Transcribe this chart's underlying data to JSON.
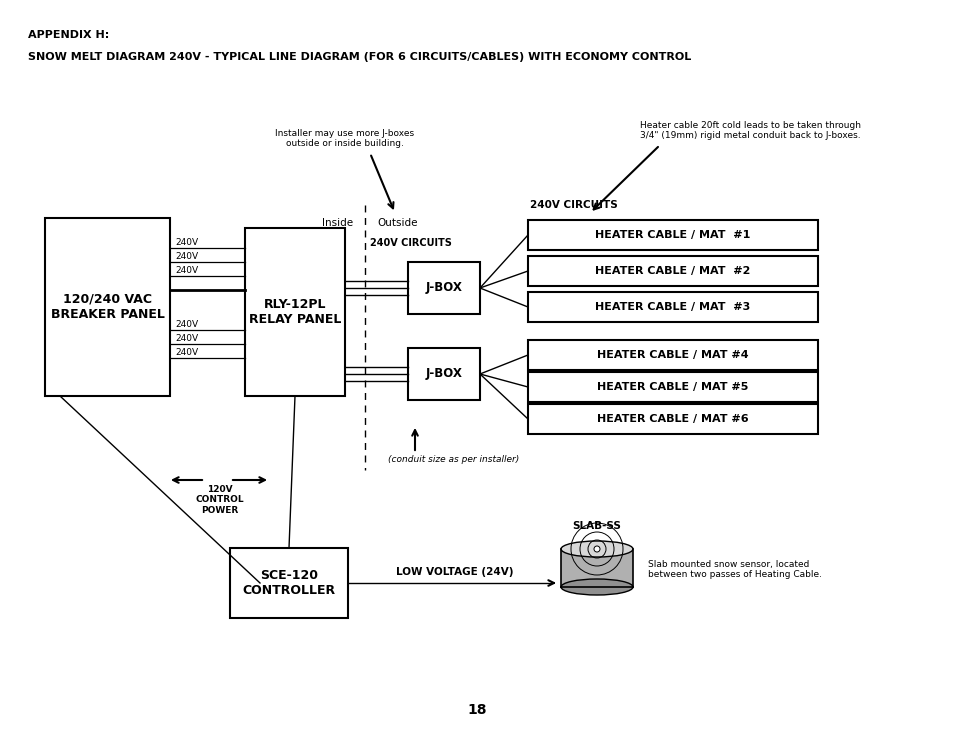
{
  "title1": "APPENDIX H:",
  "title2": "SNOW MELT DIAGRAM 240V - TYPICAL LINE DIAGRAM (FOR 6 CIRCUITS/CABLES) WITH ECONOMY CONTROL",
  "page_number": "18",
  "bg_color": "#ffffff",
  "line_color": "#000000",
  "breaker_panel_label": "120/240 VAC\nBREAKER PANEL",
  "relay_panel_label": "RLY-12PL\nRELAY PANEL",
  "controller_label": "SCE-120\nCONTROLLER",
  "jbox_label": "J-BOX",
  "inside_label": "Inside",
  "outside_label": "Outside",
  "circuits_label_left": "240V CIRCUITS",
  "circuits_label_right": "240V CIRCUITS",
  "low_voltage_label": "LOW VOLTAGE (24V)",
  "control_power_label": "120V\nCONTROL\nPOWER",
  "slab_ss_label": "SLAB-SS",
  "heater_cables": [
    "HEATER CABLE / MAT  #1",
    "HEATER CABLE / MAT  #2",
    "HEATER CABLE / MAT  #3",
    "HEATER CABLE / MAT #4",
    "HEATER CABLE / MAT #5",
    "HEATER CABLE / MAT #6"
  ],
  "voltage_labels": [
    "240V",
    "240V",
    "240V",
    "240V",
    "240V",
    "240V"
  ],
  "note1": "Installer may use more J-boxes\noutside or inside building.",
  "note2": "Heater cable 20ft cold leads to be taken through\n3/4\" (19mm) rigid metal conduit back to J-boxes.",
  "note3": "(conduit size as per installer)",
  "note4": "Slab mounted snow sensor, located\nbetween two passes of Heating Cable."
}
